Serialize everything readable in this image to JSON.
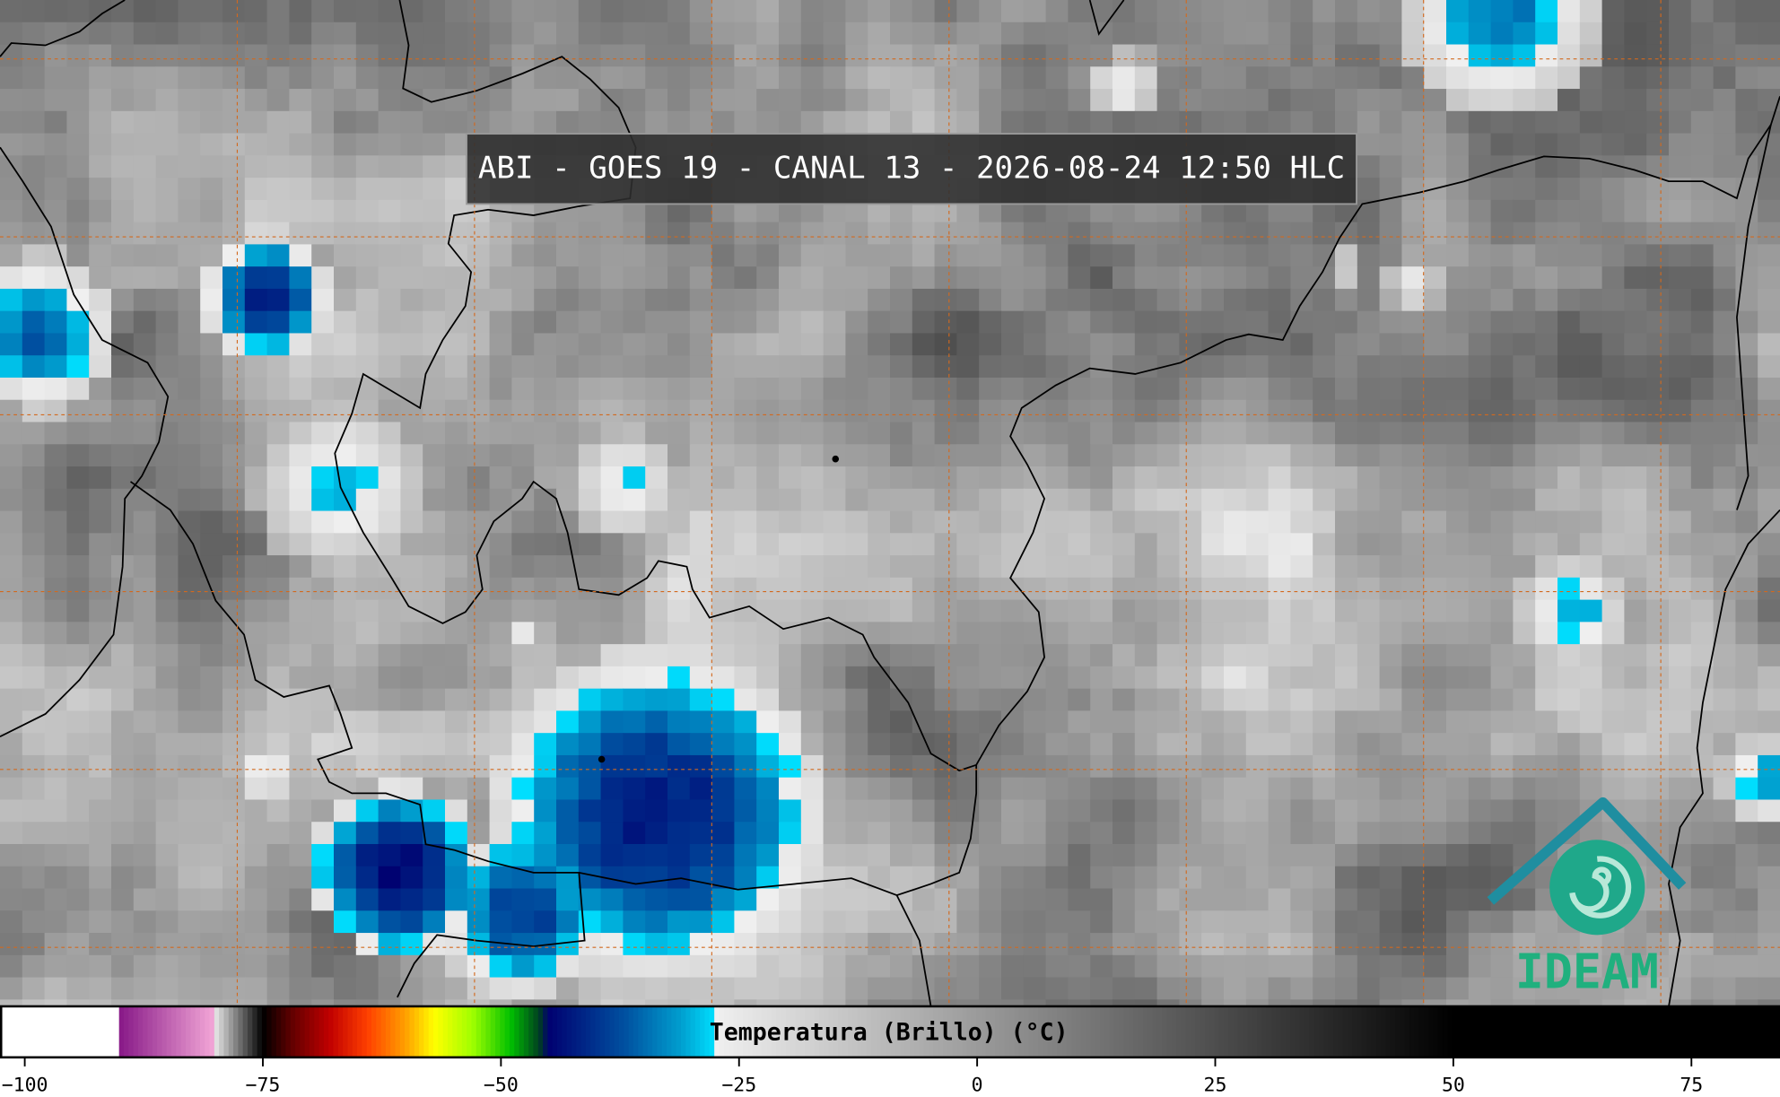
{
  "title": "ABI - GOES 19 - CANAL 13 - 2026-08-24 12:50 HLC",
  "colorbar": {
    "label": "Temperatura (Brillo) (°C)",
    "xlim": [
      -102.6,
      84.3
    ],
    "xticks": [
      {
        "value": -100,
        "label": "−100"
      },
      {
        "value": -75,
        "label": "−75"
      },
      {
        "value": -50,
        "label": "−50"
      },
      {
        "value": -25,
        "label": "−25"
      },
      0,
      25,
      50,
      75
    ]
  },
  "logo": {
    "text": "IDEAM"
  }
}
